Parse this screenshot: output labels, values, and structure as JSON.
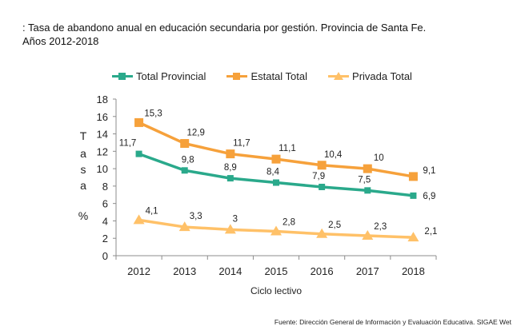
{
  "title_line1": ": Tasa de abandono anual en educación secundaria por gestión. Provincia de Santa Fe.",
  "title_line2": "Años 2012-2018",
  "source": "Fuente: Dirección General de Información y Evaluación Educativa. SIGAE Wet",
  "chart_data": {
    "type": "line",
    "x": [
      "2012",
      "2013",
      "2014",
      "2015",
      "2016",
      "2017",
      "2018"
    ],
    "xlabel": "Ciclo lectivo",
    "ylabel": [
      "T",
      "a",
      "s",
      "a",
      "%"
    ],
    "ylim": [
      0,
      18
    ],
    "yticks": [
      0,
      2,
      4,
      6,
      8,
      10,
      12,
      14,
      16,
      18
    ],
    "grid": false,
    "legend_position": "top",
    "series": [
      {
        "name": "Total Provincial",
        "color": "#2aa98b",
        "marker": "square",
        "values": [
          11.7,
          9.8,
          8.9,
          8.4,
          7.9,
          7.5,
          6.9
        ],
        "labels": [
          "11,7",
          "9,8",
          "8,9",
          "8,4",
          "7,9",
          "7,5",
          "6,9"
        ]
      },
      {
        "name": "Estatal Total",
        "color": "#f6a13b",
        "marker": "square",
        "values": [
          15.3,
          12.9,
          11.7,
          11.1,
          10.4,
          10,
          9.1
        ],
        "labels": [
          "15,3",
          "12,9",
          "11,7",
          "11,1",
          "10,4",
          "10",
          "9,1"
        ]
      },
      {
        "name": "Privada Total",
        "color": "#ffc168",
        "marker": "triangle",
        "values": [
          4.1,
          3.3,
          3,
          2.8,
          2.5,
          2.3,
          2.1
        ],
        "labels": [
          "4,1",
          "3,3",
          "3",
          "2,8",
          "2,5",
          "2,3",
          "2,1"
        ]
      }
    ]
  }
}
